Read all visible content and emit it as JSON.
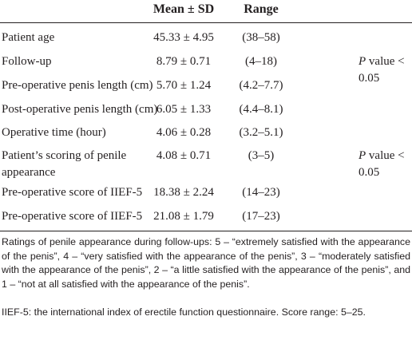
{
  "table": {
    "header": {
      "mean": "Mean ± SD",
      "range": "Range"
    },
    "rows": [
      [
        "Patient age",
        "45.33 ± 4.95",
        "(38–58)"
      ],
      [
        "Follow-up",
        "8.79 ± 0.71",
        "(4–18)"
      ],
      [
        "Pre-operative penis length (cm)",
        "5.70 ± 1.24",
        "(4.2–7.7)"
      ],
      [
        "Post-operative penis length (cm)",
        "6.05 ± 1.33",
        "(4.4–8.1)"
      ],
      [
        "Operative time (hour)",
        "4.06 ± 0.28",
        "(3.2–5.1)"
      ],
      [
        "Patient’s scoring of penile appearance",
        "4.08 ± 0.71",
        "(3–5)"
      ],
      [
        "Pre-operative score of IIEF-5",
        "18.38 ± 2.24",
        "(14–23)"
      ],
      [
        "Pre-operative score of IIEF-5",
        "21.08 ± 1.79",
        "(17–23)"
      ]
    ],
    "pvalues": [
      {
        "italic": "P",
        "text": "value < 0.05"
      },
      {
        "italic": "P",
        "text": "value < 0.05"
      }
    ]
  },
  "footnotes": [
    "Ratings of penile appearance during follow-ups: 5 – “extremely satisfied with the appearance of the penis”, 4 – “very satisfied with the appearance of the penis”, 3 – “moderately satisfied with the appearance of the penis”, 2 – “a little satisfied with the appearance of the penis”, and 1 – “not at all satisfied with the appearance of the penis”.",
    "IIEF-5: the international index of erectile function questionnaire. Score range: 5–25."
  ]
}
